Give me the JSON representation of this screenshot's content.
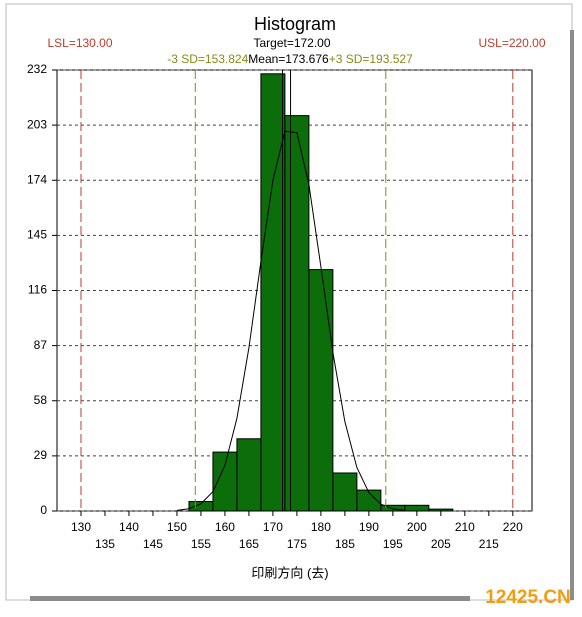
{
  "chart_data": {
    "type": "histogram",
    "title": "Histogram",
    "x_label": "印刷方向 (去)",
    "bins": [
      152.5,
      157.5,
      162.5,
      167.5,
      172.5,
      177.5,
      182.5,
      187.5,
      192.5,
      197.5,
      202.5,
      207.5
    ],
    "values": [
      5,
      31,
      38,
      230,
      208,
      127,
      20,
      11,
      3,
      3,
      1
    ],
    "color": "#0b6e0b",
    "curve": {
      "x": [
        150,
        152.5,
        155,
        157.5,
        160,
        162.5,
        165,
        167.5,
        170,
        172.5,
        175,
        177.5,
        180,
        182.5,
        185,
        187.5,
        190,
        192.5,
        195,
        197.5
      ],
      "values": [
        0.3,
        1.2,
        3.8,
        10.2,
        24.0,
        48.8,
        85.9,
        131.3,
        174.0,
        199.8,
        199.0,
        171.8,
        128.5,
        83.4,
        47.0,
        22.9,
        9.7,
        3.6,
        1.1,
        0.3
      ],
      "color": "#000000"
    },
    "reference_lines": [
      {
        "label": "LSL=130.00",
        "value": 130,
        "color": "#c0392b",
        "dashed": true
      },
      {
        "label": "Target=172.00",
        "value": 172,
        "color": "#000000",
        "dashed": false
      },
      {
        "label": "USL=220.00",
        "value": 220,
        "color": "#c0392b",
        "dashed": true
      },
      {
        "label": "-3 SD=153.824",
        "value": 153.824,
        "color": "#8a8a1a",
        "dashed": true
      },
      {
        "label": "Mean=173.676",
        "value": 173.676,
        "color": "#000000",
        "dashed": false
      },
      {
        "label": "+3 SD=193.527",
        "value": 193.527,
        "color": "#8a8a1a",
        "dashed": true
      }
    ],
    "xlim": [
      125,
      224
    ],
    "xticks": [
      130,
      135,
      140,
      145,
      150,
      155,
      160,
      165,
      170,
      175,
      180,
      185,
      190,
      195,
      200,
      205,
      210,
      215,
      220
    ],
    "ylim": [
      0,
      232
    ],
    "yticks": [
      0,
      29,
      58,
      87,
      116,
      145,
      174,
      203,
      232
    ],
    "grid": true,
    "watermark": "12425.CN"
  }
}
